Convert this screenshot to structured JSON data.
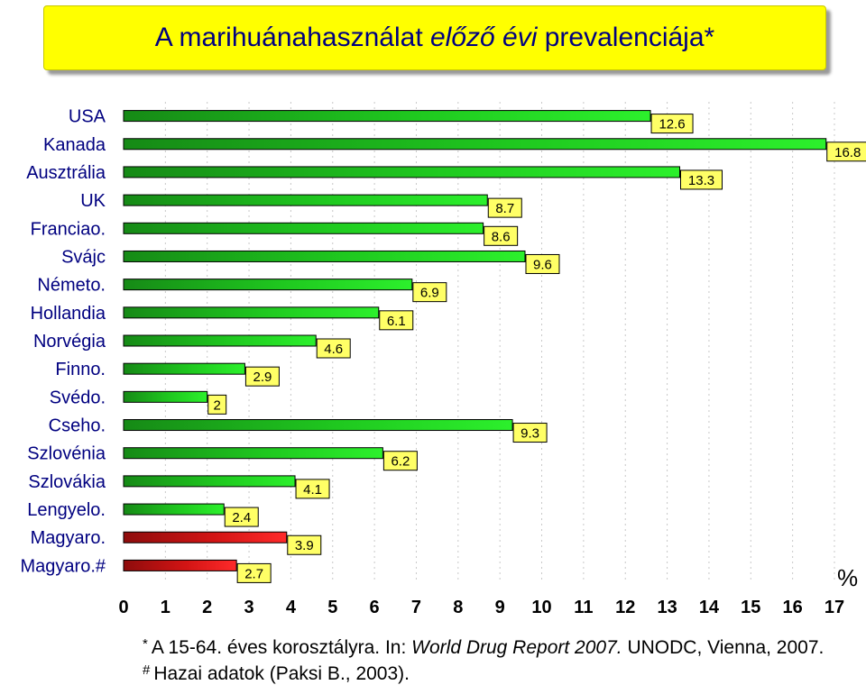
{
  "title": {
    "part1": "A marihuánahasználat ",
    "part2_italic": "előző évi",
    "part3": " prevalenciája*"
  },
  "colors": {
    "title_bg": "#ffff00",
    "title_text": "#000080",
    "label_bg": "#ffff66",
    "bar_green": "#22dd22",
    "bar_red": "#dd1111"
  },
  "chart_data": {
    "type": "bar",
    "orientation": "horizontal",
    "categories": [
      "USA",
      "Kanada",
      "Ausztrália",
      "UK",
      "Franciao.",
      "Svájc",
      "Németo.",
      "Hollandia",
      "Norvégia",
      "Finno.",
      "Svédo.",
      "Cseho.",
      "Szlovénia",
      "Szlovákia",
      "Lengyelo.",
      "Magyaro.",
      "Magyaro.#"
    ],
    "values": [
      12.6,
      16.8,
      13.3,
      8.7,
      8.6,
      9.6,
      6.9,
      6.1,
      4.6,
      2.9,
      2,
      9.3,
      6.2,
      4.1,
      2.4,
      3.9,
      2.7
    ],
    "value_labels": [
      "12.6",
      "16.8",
      "13.3",
      "8.7",
      "8.6",
      "9.6",
      "6.9",
      "6.1",
      "4.6",
      "2.9",
      "2",
      "9.3",
      "6.2",
      "4.1",
      "2.4",
      "3.9",
      "2.7"
    ],
    "highlight_categories": [
      "Magyaro.",
      "Magyaro.#"
    ],
    "xlim": [
      0,
      17
    ],
    "xticks": [
      "0",
      "1",
      "2",
      "3",
      "4",
      "5",
      "6",
      "7",
      "8",
      "9",
      "10",
      "11",
      "12",
      "13",
      "14",
      "15",
      "16",
      "17"
    ],
    "xlabel": "%",
    "grid": true
  },
  "footnotes": {
    "line1": {
      "mark": "*",
      "pre": "A 15-64. éves korosztályra. In: ",
      "italic": "World Drug Report 2007.",
      "post": " UNODC, Vienna, 2007."
    },
    "line2": {
      "mark": "#",
      "text": "Hazai adatok (Paksi B., 2003)."
    }
  }
}
